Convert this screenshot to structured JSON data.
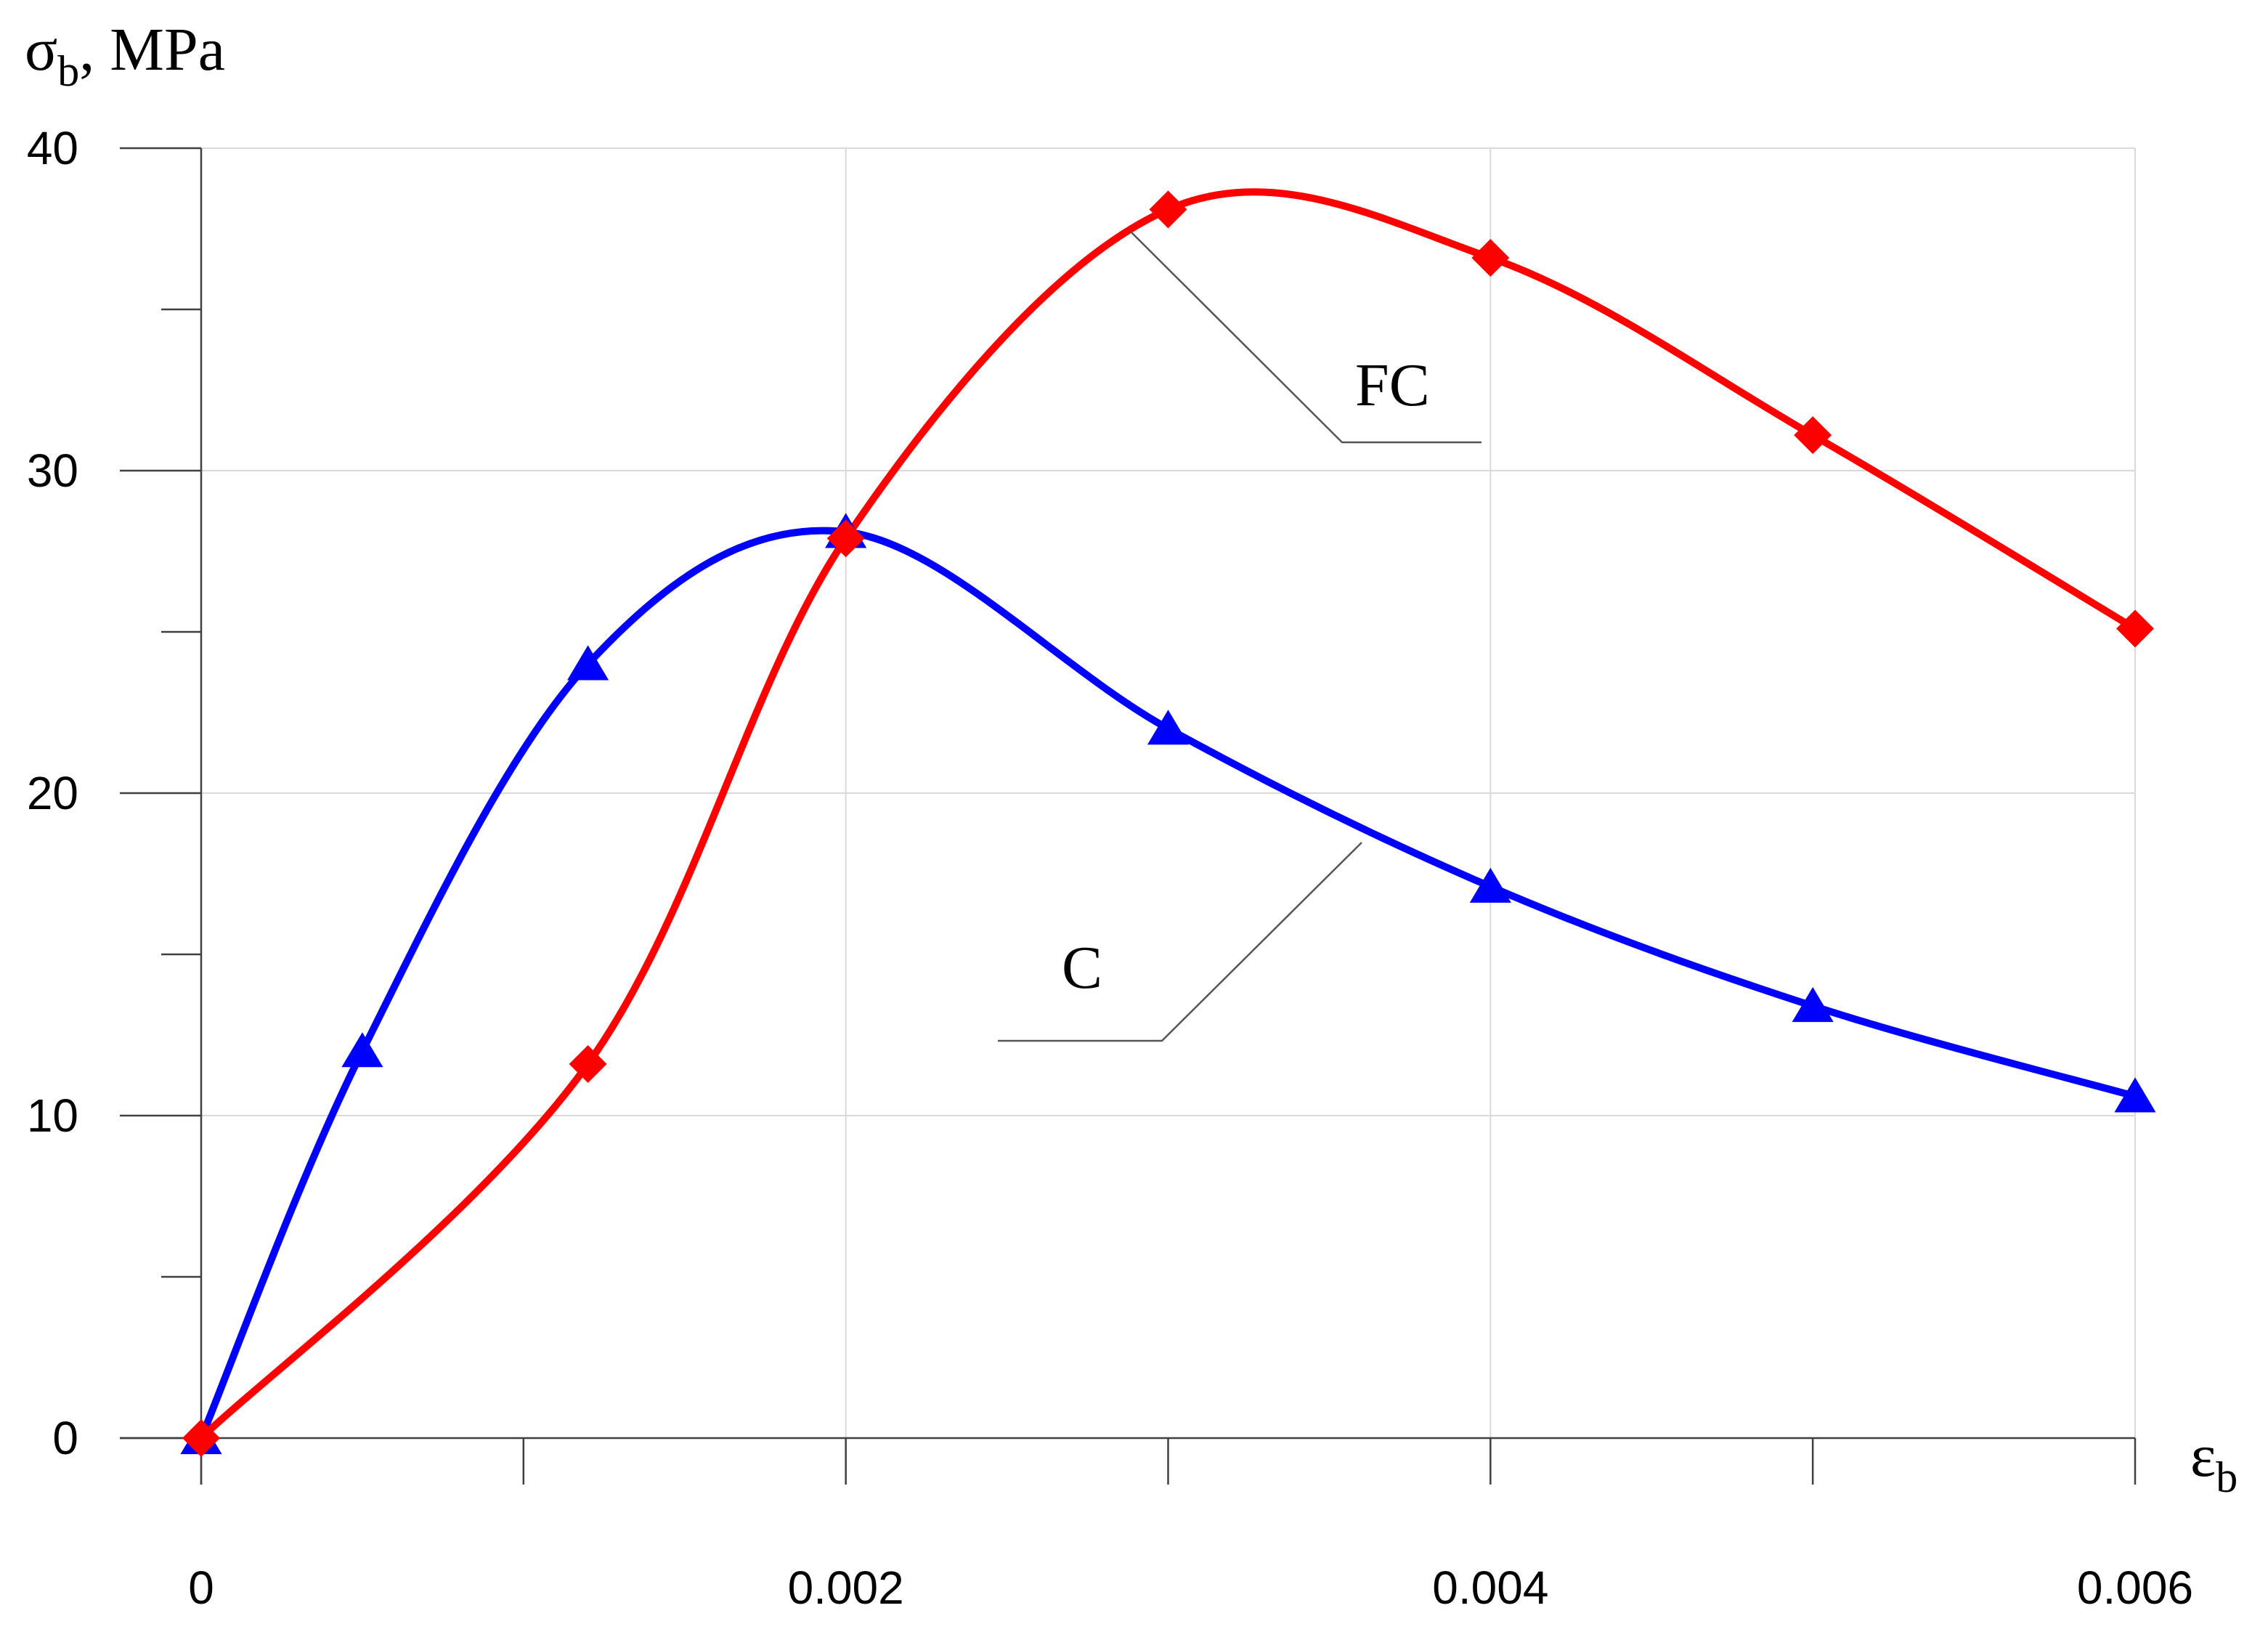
{
  "chart_data": {
    "type": "line",
    "title": "",
    "ylabel": {
      "main": "σ",
      "sub": "b",
      "suffix": ", MPa"
    },
    "xlabel": {
      "main": "ε",
      "sub": "b"
    },
    "xlim": [
      0,
      0.006
    ],
    "ylim": [
      0,
      40
    ],
    "x_ticks": [
      {
        "value": 0,
        "label": "0"
      },
      {
        "value": 0.002,
        "label": "0.002"
      },
      {
        "value": 0.004,
        "label": "0.004"
      },
      {
        "value": 0.006,
        "label": "0.006"
      }
    ],
    "x_minor_ticks": [
      0.001,
      0.003,
      0.005
    ],
    "y_ticks": [
      {
        "value": 0,
        "label": "0"
      },
      {
        "value": 10,
        "label": "10"
      },
      {
        "value": 20,
        "label": "20"
      },
      {
        "value": 30,
        "label": "30"
      },
      {
        "value": 40,
        "label": "40"
      }
    ],
    "y_minor_ticks": [
      5,
      15,
      25,
      35
    ],
    "grid": true,
    "series": [
      {
        "name": "C",
        "color": "#0000ff",
        "marker": "triangle",
        "x": [
          0,
          0.0005,
          0.0012,
          0.002,
          0.003,
          0.004,
          0.005,
          0.006
        ],
        "y": [
          0,
          12,
          24,
          28.1,
          22,
          17.1,
          13.4,
          10.6
        ]
      },
      {
        "name": "FC",
        "color": "#ff0000",
        "marker": "diamond",
        "x": [
          0,
          0.0012,
          0.002,
          0.003,
          0.004,
          0.005,
          0.006
        ],
        "y": [
          0,
          11.6,
          27.9,
          38.1,
          36.6,
          31.1,
          25.1
        ]
      }
    ]
  }
}
